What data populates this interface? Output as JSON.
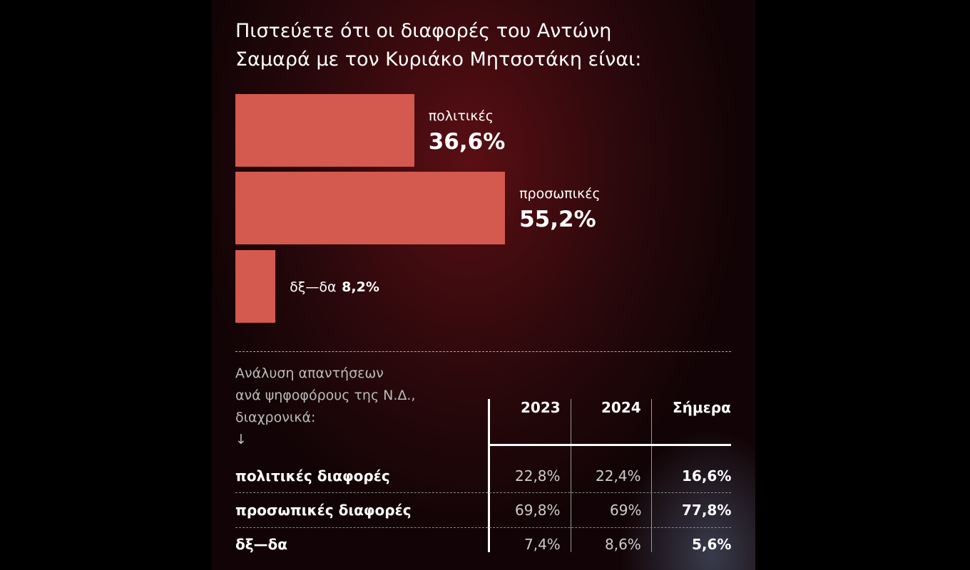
{
  "chart_data": {
    "type": "bar",
    "title": [
      "Πιστεύετε ότι οι διαφορές του Αντώνη",
      "Σαμαρά με τον Κυριάκο Μητσοτάκη είναι:"
    ],
    "categories": [
      "πολιτικές",
      "προσωπικές",
      "δξ—δα"
    ],
    "values": [
      36.6,
      55.2,
      8.2
    ],
    "value_labels": [
      "36,6%",
      "55,2%",
      "8,2%"
    ],
    "color": "#d4594e"
  },
  "table": {
    "caption": [
      "Ανάλυση απαντήσεων",
      "ανά ψηφοφόρους της Ν.Δ.,",
      "διαχρονικά:",
      "↓"
    ],
    "columns": [
      "2023",
      "2024",
      "Σήμερα"
    ],
    "rows": [
      [
        "πολιτικές διαφορές",
        "22,8%",
        "22,4%",
        "16,6%"
      ],
      [
        "προσωπικές διαφορές",
        "69,8%",
        "69%",
        "77,8%"
      ],
      [
        "δξ—δα",
        "7,4%",
        "8,6%",
        "5,6%"
      ]
    ]
  }
}
